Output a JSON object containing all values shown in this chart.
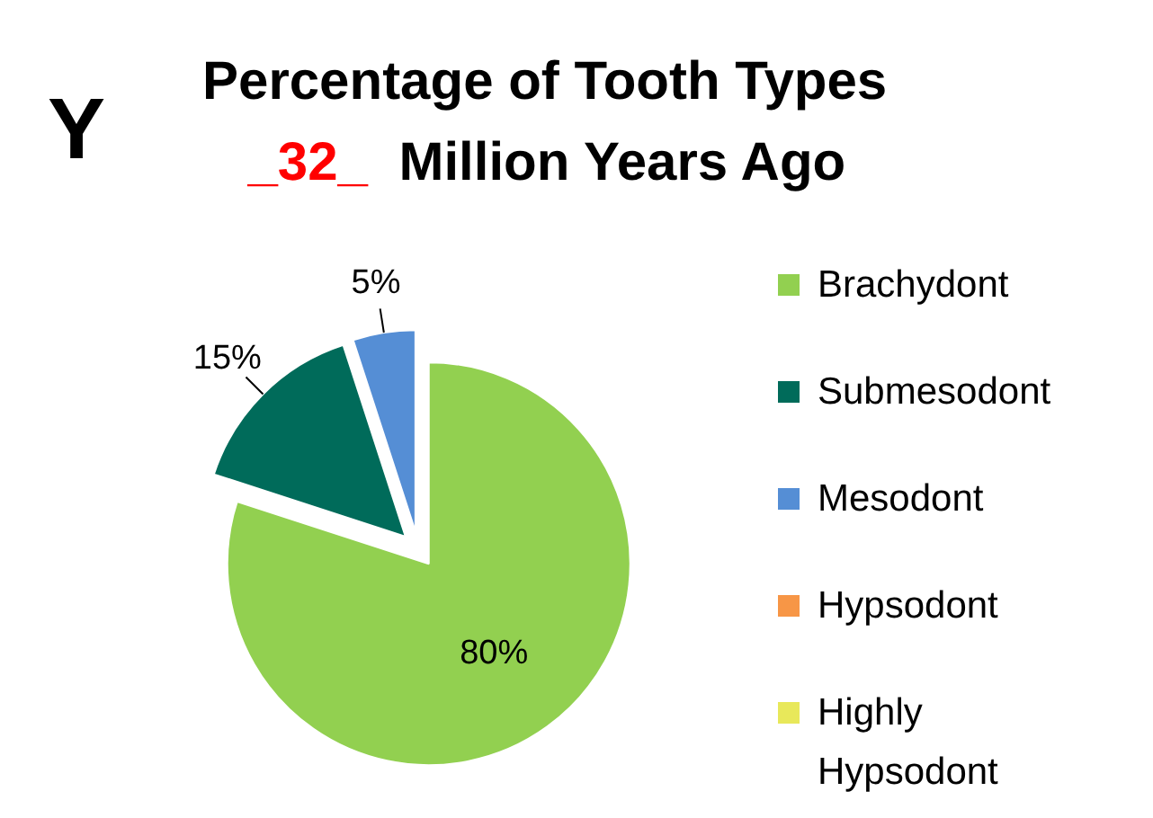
{
  "chart_data": {
    "type": "pie",
    "title": "Percentage of Tooth Types _32_ Million Years Ago",
    "categories": [
      "Brachydont",
      "Submesodont",
      "Mesodont",
      "Hypsodont",
      "Highly Hypsodont"
    ],
    "values": [
      80,
      15,
      5,
      0,
      0
    ],
    "colors": [
      "#92d050",
      "#006b5a",
      "#558ed5",
      "#f79646",
      "#e8e85a"
    ],
    "value_labels": [
      "80%",
      "15%",
      "5%",
      null,
      null
    ],
    "annotations": [
      "Y"
    ],
    "legend": "right"
  }
}
